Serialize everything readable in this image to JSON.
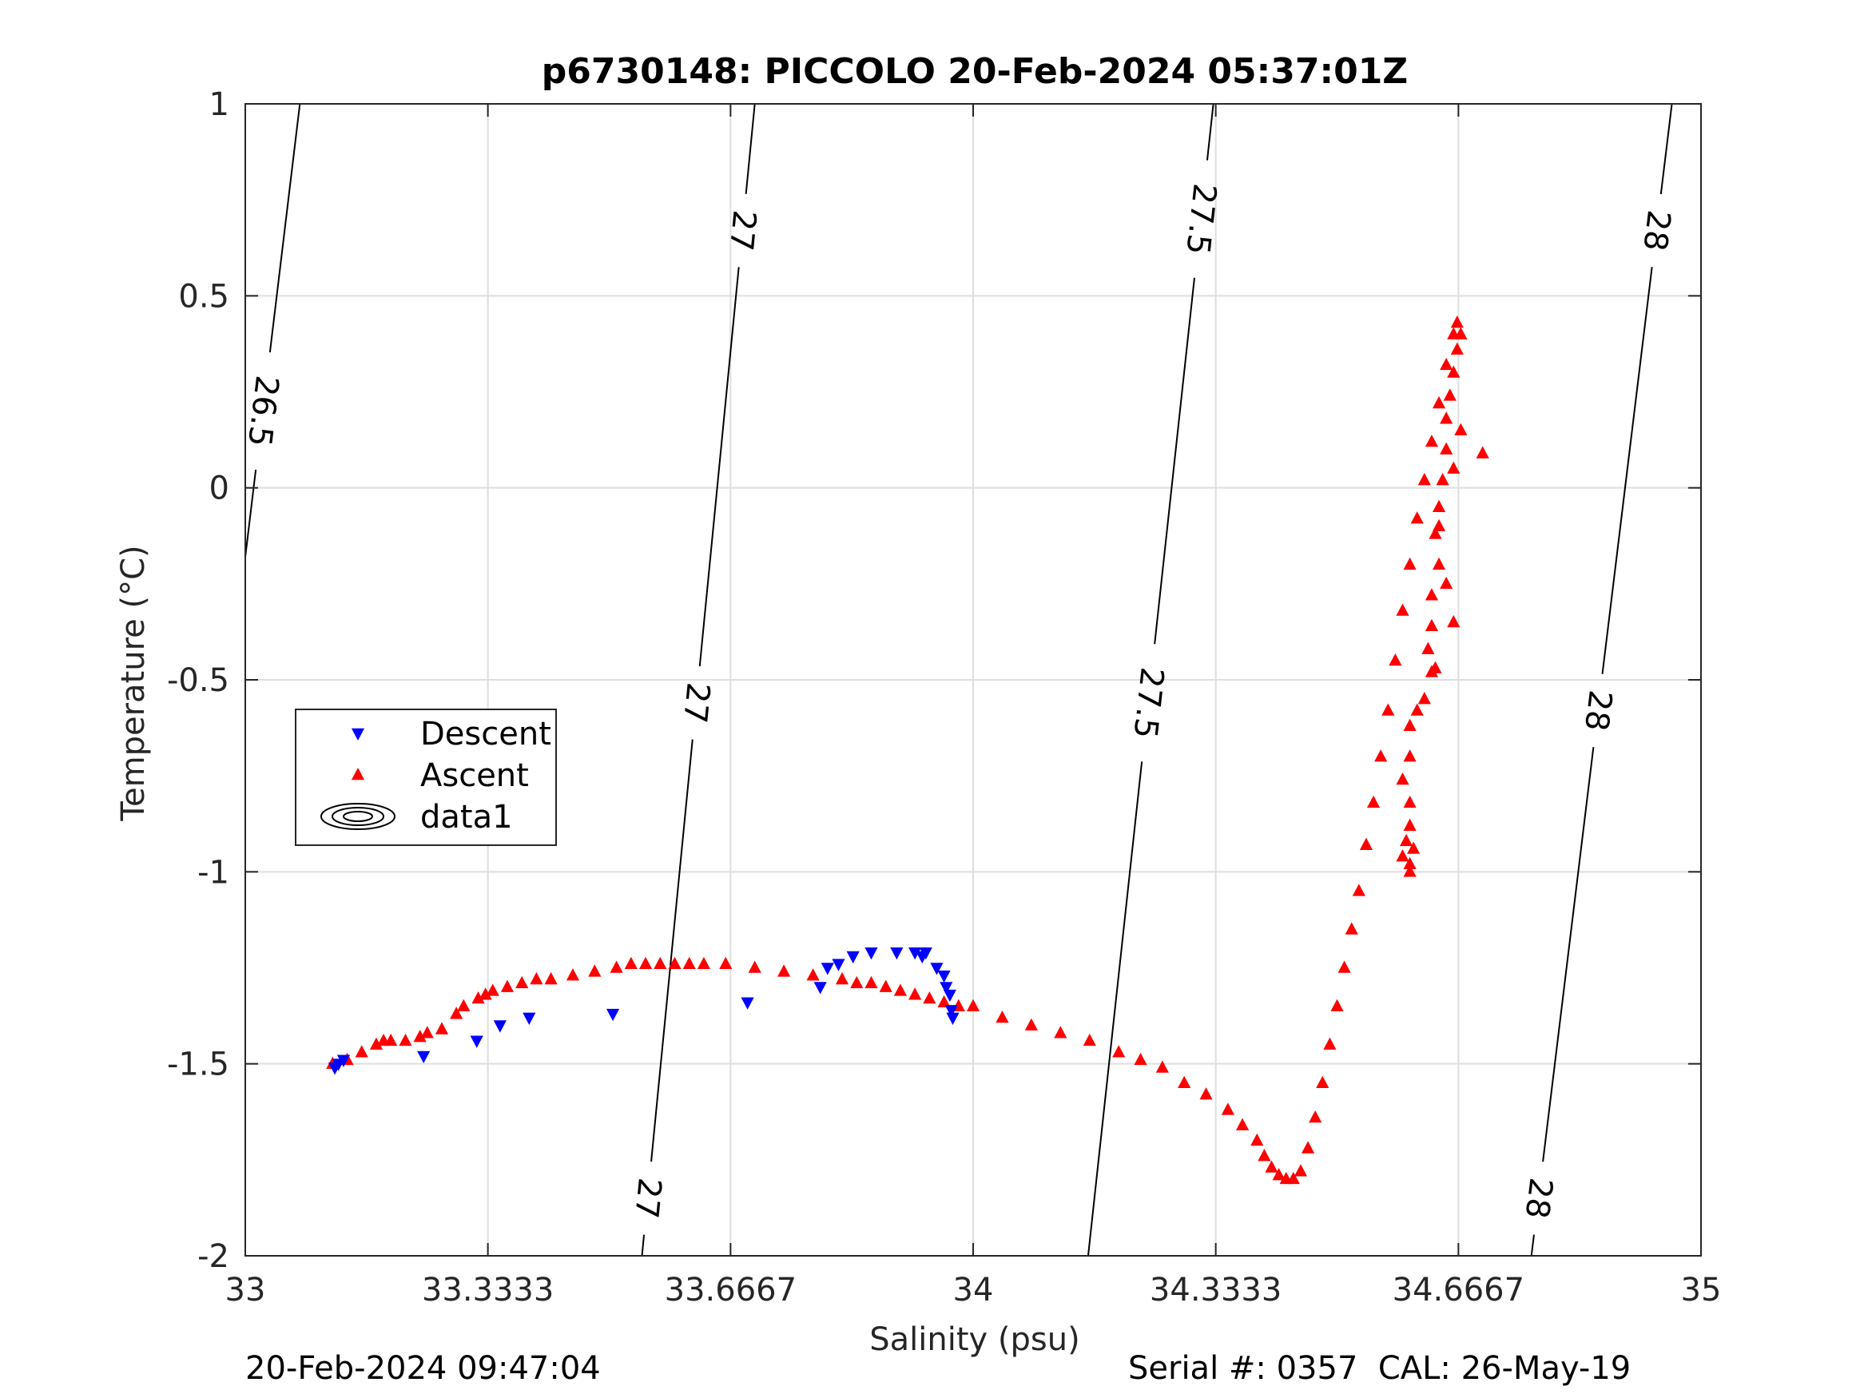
{
  "chart_data": {
    "type": "scatter",
    "title": "p6730148: PICCOLO 20-Feb-2024 05:37:01Z",
    "xlabel": "Salinity (psu)",
    "ylabel": "Temperature (°C)",
    "xlim": [
      33,
      35
    ],
    "ylim": [
      -2,
      1
    ],
    "xticks": [
      33,
      33.3333,
      33.6667,
      34,
      34.3333,
      34.6667,
      35
    ],
    "xtick_labels": [
      "33",
      "33.3333",
      "33.6667",
      "34",
      "34.3333",
      "34.6667",
      "35"
    ],
    "yticks": [
      -2,
      -1.5,
      -1,
      -0.5,
      0,
      0.5,
      1
    ],
    "ytick_labels": [
      "-2",
      "-1.5",
      "-1",
      "-0.5",
      "0",
      "0.5",
      "1"
    ],
    "grid": true,
    "legend": {
      "position": "middle-left",
      "entries": [
        {
          "label": "Descent",
          "marker": "triangle-down",
          "color": "#0000ff"
        },
        {
          "label": "Ascent",
          "marker": "triangle-up",
          "color": "#ff0000"
        },
        {
          "label": "data1",
          "marker": "contour",
          "color": "#000000"
        }
      ]
    },
    "series": [
      {
        "name": "Descent",
        "marker": "triangle-down",
        "color": "#0000ff",
        "x": [
          33.123,
          33.128,
          33.135,
          33.245,
          33.318,
          33.35,
          33.39,
          33.505,
          33.69,
          33.79,
          33.8,
          33.815,
          33.835,
          33.86,
          33.895,
          33.92,
          33.93,
          33.935,
          33.95,
          33.96,
          33.963,
          33.968,
          33.97,
          33.972
        ],
        "y": [
          -1.51,
          -1.5,
          -1.49,
          -1.48,
          -1.44,
          -1.4,
          -1.38,
          -1.37,
          -1.34,
          -1.3,
          -1.25,
          -1.24,
          -1.22,
          -1.21,
          -1.21,
          -1.21,
          -1.22,
          -1.21,
          -1.25,
          -1.27,
          -1.3,
          -1.32,
          -1.36,
          -1.38
        ]
      },
      {
        "name": "Ascent",
        "marker": "triangle-up",
        "color": "#ff0000",
        "x": [
          33.12,
          33.14,
          33.16,
          33.18,
          33.19,
          33.2,
          33.22,
          33.24,
          33.25,
          33.27,
          33.29,
          33.3,
          33.32,
          33.33,
          33.34,
          33.36,
          33.38,
          33.4,
          33.42,
          33.45,
          33.48,
          33.51,
          33.53,
          33.55,
          33.57,
          33.59,
          33.61,
          33.63,
          33.66,
          33.7,
          33.74,
          33.78,
          33.82,
          33.84,
          33.86,
          33.88,
          33.9,
          33.92,
          33.94,
          33.96,
          33.98,
          34.0,
          34.04,
          34.08,
          34.12,
          34.16,
          34.2,
          34.23,
          34.26,
          34.29,
          34.32,
          34.35,
          34.37,
          34.39,
          34.4,
          34.41,
          34.42,
          34.43,
          34.44,
          34.45,
          34.46,
          34.47,
          34.48,
          34.49,
          34.5,
          34.51,
          34.52,
          34.53,
          34.54,
          34.55,
          34.56,
          34.57,
          34.58,
          34.59,
          34.6,
          34.61,
          34.62,
          34.63,
          34.64,
          34.65,
          34.66,
          34.665,
          34.67,
          34.665,
          34.66,
          34.655,
          34.65,
          34.65,
          34.645,
          34.64,
          34.635,
          34.64,
          34.63,
          34.63,
          34.625,
          34.63,
          34.635,
          34.62,
          34.61,
          34.6,
          34.6,
          34.59,
          34.6,
          34.6,
          34.595,
          34.59,
          34.6,
          34.6,
          34.605,
          34.64,
          34.66,
          34.67,
          34.7,
          34.65,
          34.66
        ],
        "y": [
          -1.5,
          -1.49,
          -1.47,
          -1.45,
          -1.44,
          -1.44,
          -1.44,
          -1.43,
          -1.42,
          -1.41,
          -1.37,
          -1.35,
          -1.33,
          -1.32,
          -1.31,
          -1.3,
          -1.29,
          -1.28,
          -1.28,
          -1.27,
          -1.26,
          -1.25,
          -1.24,
          -1.24,
          -1.24,
          -1.24,
          -1.24,
          -1.24,
          -1.24,
          -1.25,
          -1.26,
          -1.27,
          -1.28,
          -1.29,
          -1.29,
          -1.3,
          -1.31,
          -1.32,
          -1.33,
          -1.34,
          -1.35,
          -1.35,
          -1.38,
          -1.4,
          -1.42,
          -1.44,
          -1.47,
          -1.49,
          -1.51,
          -1.55,
          -1.58,
          -1.62,
          -1.66,
          -1.7,
          -1.74,
          -1.77,
          -1.79,
          -1.8,
          -1.8,
          -1.78,
          -1.72,
          -1.64,
          -1.55,
          -1.45,
          -1.35,
          -1.25,
          -1.15,
          -1.05,
          -0.93,
          -0.82,
          -0.7,
          -0.58,
          -0.45,
          -0.32,
          -0.2,
          -0.08,
          0.02,
          0.12,
          0.22,
          0.32,
          0.4,
          0.43,
          0.4,
          0.36,
          0.3,
          0.24,
          0.18,
          0.1,
          0.02,
          -0.05,
          -0.12,
          -0.2,
          -0.28,
          -0.36,
          -0.42,
          -0.48,
          -0.47,
          -0.55,
          -0.58,
          -0.62,
          -0.7,
          -0.76,
          -0.82,
          -0.88,
          -0.92,
          -0.96,
          -1.0,
          -0.98,
          -0.94,
          -0.1,
          0.05,
          0.15,
          0.09,
          -0.25,
          -0.35
        ]
      }
    ],
    "contour_labels": [
      "26.5",
      "27",
      "27.5",
      "28"
    ]
  },
  "footer": {
    "timestamp": "20-Feb-2024 09:47:04",
    "serial_cal": "Serial #: 0357  CAL: 26-May-19"
  }
}
